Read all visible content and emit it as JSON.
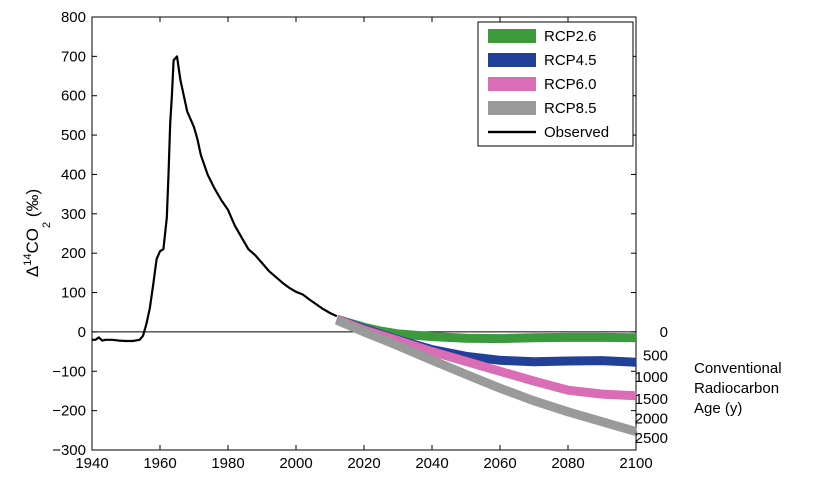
{
  "chart_data": {
    "type": "line",
    "ylabel": {
      "prefix": "Δ",
      "sup": "14",
      "main": "CO",
      "sub": "2",
      "unit": " (‰)"
    },
    "xlim": [
      1940,
      2100
    ],
    "ylim": [
      -300,
      800
    ],
    "x_ticks": [
      1940,
      1960,
      1980,
      2000,
      2020,
      2040,
      2060,
      2080,
      2100
    ],
    "y_ticks": [
      -300,
      -200,
      -100,
      0,
      100,
      200,
      300,
      400,
      500,
      600,
      700,
      800
    ],
    "zero_line": true,
    "legend_position": "top-right",
    "secondary_axis": {
      "title_lines": [
        "Conventional",
        "Radiocarbon",
        "Age (y)"
      ],
      "ticks": [
        {
          "label": "0",
          "value": 0
        },
        {
          "label": "500",
          "value": -60
        },
        {
          "label": "1000",
          "value": -115
        },
        {
          "label": "1500",
          "value": -170
        },
        {
          "label": "2000",
          "value": -220
        },
        {
          "label": "2500",
          "value": -270
        }
      ]
    },
    "series": [
      {
        "name": "RCP2.6",
        "color": "#3c9a3c",
        "kind": "band",
        "x": [
          2012,
          2020,
          2025,
          2030,
          2040,
          2050,
          2060,
          2070,
          2080,
          2090,
          2100
        ],
        "y": [
          32,
          12,
          2,
          -5,
          -12,
          -16,
          -17,
          -15,
          -14,
          -14,
          -15
        ]
      },
      {
        "name": "RCP4.5",
        "color": "#22409a",
        "kind": "band",
        "x": [
          2012,
          2020,
          2030,
          2040,
          2050,
          2060,
          2070,
          2080,
          2090,
          2100
        ],
        "y": [
          32,
          8,
          -20,
          -45,
          -62,
          -72,
          -76,
          -74,
          -73,
          -77
        ]
      },
      {
        "name": "RCP6.0",
        "color": "#d96db6",
        "kind": "band",
        "x": [
          2012,
          2020,
          2030,
          2040,
          2050,
          2060,
          2070,
          2080,
          2090,
          2100
        ],
        "y": [
          32,
          5,
          -22,
          -50,
          -75,
          -100,
          -125,
          -148,
          -158,
          -162
        ]
      },
      {
        "name": "RCP8.5",
        "color": "#9a9a9a",
        "kind": "band",
        "x": [
          2012,
          2020,
          2030,
          2040,
          2050,
          2060,
          2070,
          2080,
          2090,
          2100
        ],
        "y": [
          30,
          0,
          -35,
          -72,
          -108,
          -143,
          -175,
          -203,
          -228,
          -253
        ]
      },
      {
        "name": "Observed",
        "color": "#000000",
        "kind": "line",
        "x": [
          1940,
          1941,
          1942,
          1943,
          1944,
          1946,
          1948,
          1950,
          1952,
          1954,
          1955,
          1956,
          1957,
          1958,
          1959,
          1960,
          1961,
          1962,
          1962.5,
          1963,
          1963.5,
          1964,
          1964.5,
          1965,
          1966,
          1967,
          1968,
          1970,
          1971,
          1972,
          1974,
          1976,
          1978,
          1980,
          1982,
          1984,
          1986,
          1988,
          1990,
          1992,
          1994,
          1996,
          1998,
          2000,
          2002,
          2004,
          2006,
          2008,
          2010,
          2012
        ],
        "y": [
          -20,
          -20,
          -14,
          -22,
          -20,
          -20,
          -22,
          -23,
          -23,
          -20,
          -10,
          20,
          60,
          120,
          185,
          205,
          210,
          290,
          400,
          530,
          600,
          690,
          695,
          700,
          640,
          600,
          560,
          520,
          490,
          450,
          400,
          365,
          335,
          310,
          270,
          240,
          210,
          195,
          175,
          155,
          140,
          125,
          112,
          102,
          95,
          82,
          70,
          58,
          48,
          40
        ]
      }
    ]
  }
}
